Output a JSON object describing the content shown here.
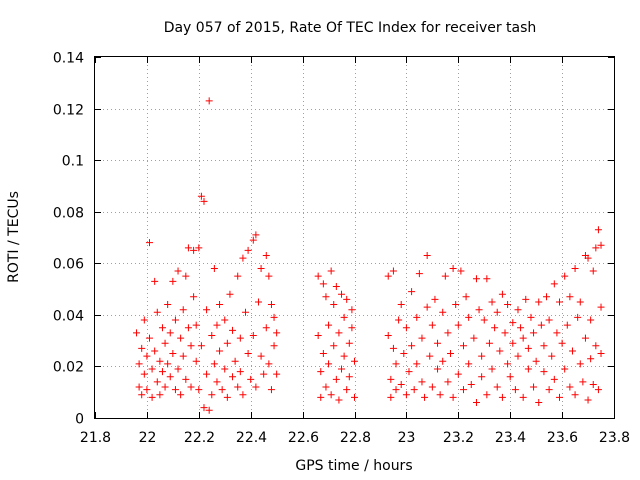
{
  "chart_data": {
    "type": "scatter",
    "title": "Day 057 of 2015, Rate Of TEC Index for receiver tash",
    "xlabel": "GPS time / hours",
    "ylabel": "ROTI / TECUs",
    "xlim": [
      21.8,
      23.8
    ],
    "ylim": [
      0,
      0.14
    ],
    "xticks": [
      "21.8",
      "22",
      "22.2",
      "22.4",
      "22.6",
      "22.8",
      "23",
      "23.2",
      "23.4",
      "23.6",
      "23.8"
    ],
    "yticks": [
      "0",
      "0.02",
      "0.04",
      "0.06",
      "0.08",
      "0.1",
      "0.12",
      "0.14"
    ],
    "grid": true,
    "marker": "+",
    "color": "#ff0000",
    "series": [
      {
        "name": "ROTI",
        "points": [
          [
            21.96,
            0.033
          ],
          [
            21.97,
            0.021
          ],
          [
            21.97,
            0.012
          ],
          [
            21.98,
            0.009
          ],
          [
            21.98,
            0.027
          ],
          [
            21.99,
            0.017
          ],
          [
            21.99,
            0.038
          ],
          [
            22.0,
            0.024
          ],
          [
            22.0,
            0.011
          ],
          [
            22.01,
            0.068
          ],
          [
            22.01,
            0.031
          ],
          [
            22.02,
            0.019
          ],
          [
            22.02,
            0.008
          ],
          [
            22.03,
            0.053
          ],
          [
            22.03,
            0.026
          ],
          [
            22.04,
            0.014
          ],
          [
            22.04,
            0.041
          ],
          [
            22.05,
            0.022
          ],
          [
            22.05,
            0.009
          ],
          [
            22.06,
            0.035
          ],
          [
            22.06,
            0.018
          ],
          [
            22.07,
            0.029
          ],
          [
            22.07,
            0.012
          ],
          [
            22.08,
            0.044
          ],
          [
            22.08,
            0.021
          ],
          [
            22.09,
            0.016
          ],
          [
            22.09,
            0.033
          ],
          [
            22.1,
            0.053
          ],
          [
            22.1,
            0.025
          ],
          [
            22.11,
            0.011
          ],
          [
            22.11,
            0.038
          ],
          [
            22.12,
            0.057
          ],
          [
            22.12,
            0.019
          ],
          [
            22.13,
            0.031
          ],
          [
            22.13,
            0.009
          ],
          [
            22.14,
            0.042
          ],
          [
            22.14,
            0.024
          ],
          [
            22.15,
            0.055
          ],
          [
            22.15,
            0.015
          ],
          [
            22.16,
            0.035
          ],
          [
            22.16,
            0.066
          ],
          [
            22.17,
            0.028
          ],
          [
            22.17,
            0.012
          ],
          [
            22.18,
            0.047
          ],
          [
            22.18,
            0.065
          ],
          [
            22.19,
            0.022
          ],
          [
            22.19,
            0.036
          ],
          [
            22.2,
            0.066
          ],
          [
            22.2,
            0.011
          ],
          [
            22.21,
            0.086
          ],
          [
            22.21,
            0.028
          ],
          [
            22.22,
            0.084
          ],
          [
            22.22,
            0.004
          ],
          [
            22.23,
            0.042
          ],
          [
            22.23,
            0.017
          ],
          [
            22.24,
            0.123
          ],
          [
            22.24,
            0.003
          ],
          [
            22.25,
            0.032
          ],
          [
            22.25,
            0.009
          ],
          [
            22.26,
            0.058
          ],
          [
            22.26,
            0.021
          ],
          [
            22.27,
            0.036
          ],
          [
            22.27,
            0.014
          ],
          [
            22.28,
            0.026
          ],
          [
            22.28,
            0.044
          ],
          [
            22.29,
            0.011
          ],
          [
            22.3,
            0.038
          ],
          [
            22.3,
            0.019
          ],
          [
            22.31,
            0.029
          ],
          [
            22.31,
            0.008
          ],
          [
            22.32,
            0.048
          ],
          [
            22.33,
            0.016
          ],
          [
            22.33,
            0.034
          ],
          [
            22.34,
            0.022
          ],
          [
            22.35,
            0.012
          ],
          [
            22.35,
            0.055
          ],
          [
            22.36,
            0.031
          ],
          [
            22.36,
            0.018
          ],
          [
            22.37,
            0.062
          ],
          [
            22.37,
            0.009
          ],
          [
            22.38,
            0.041
          ],
          [
            22.39,
            0.025
          ],
          [
            22.39,
            0.065
          ],
          [
            22.4,
            0.015
          ],
          [
            22.41,
            0.069
          ],
          [
            22.41,
            0.032
          ],
          [
            22.42,
            0.071
          ],
          [
            22.42,
            0.012
          ],
          [
            22.43,
            0.045
          ],
          [
            22.44,
            0.024
          ],
          [
            22.44,
            0.058
          ],
          [
            22.45,
            0.017
          ],
          [
            22.46,
            0.063
          ],
          [
            22.46,
            0.035
          ],
          [
            22.47,
            0.021
          ],
          [
            22.47,
            0.055
          ],
          [
            22.48,
            0.011
          ],
          [
            22.48,
            0.044
          ],
          [
            22.49,
            0.028
          ],
          [
            22.49,
            0.039
          ],
          [
            22.5,
            0.017
          ],
          [
            22.5,
            0.033
          ],
          [
            22.66,
            0.055
          ],
          [
            22.66,
            0.032
          ],
          [
            22.67,
            0.018
          ],
          [
            22.67,
            0.008
          ],
          [
            22.68,
            0.052
          ],
          [
            22.68,
            0.025
          ],
          [
            22.69,
            0.047
          ],
          [
            22.69,
            0.012
          ],
          [
            22.7,
            0.036
          ],
          [
            22.7,
            0.021
          ],
          [
            22.71,
            0.057
          ],
          [
            22.71,
            0.009
          ],
          [
            22.72,
            0.044
          ],
          [
            22.72,
            0.028
          ],
          [
            22.73,
            0.015
          ],
          [
            22.73,
            0.051
          ],
          [
            22.74,
            0.033
          ],
          [
            22.74,
            0.007
          ],
          [
            22.75,
            0.048
          ],
          [
            22.75,
            0.019
          ],
          [
            22.76,
            0.039
          ],
          [
            22.76,
            0.024
          ],
          [
            22.77,
            0.011
          ],
          [
            22.77,
            0.046
          ],
          [
            22.78,
            0.029
          ],
          [
            22.78,
            0.016
          ],
          [
            22.79,
            0.035
          ],
          [
            22.79,
            0.042
          ],
          [
            22.8,
            0.022
          ],
          [
            22.8,
            0.008
          ],
          [
            22.93,
            0.055
          ],
          [
            22.93,
            0.032
          ],
          [
            22.94,
            0.015
          ],
          [
            22.94,
            0.008
          ],
          [
            22.95,
            0.057
          ],
          [
            22.95,
            0.027
          ],
          [
            22.96,
            0.021
          ],
          [
            22.96,
            0.011
          ],
          [
            22.97,
            0.038
          ],
          [
            22.98,
            0.013
          ],
          [
            22.98,
            0.044
          ],
          [
            22.99,
            0.025
          ],
          [
            23.0,
            0.009
          ],
          [
            23.0,
            0.035
          ],
          [
            23.01,
            0.018
          ],
          [
            23.02,
            0.049
          ],
          [
            23.02,
            0.028
          ],
          [
            23.03,
            0.011
          ],
          [
            23.04,
            0.039
          ],
          [
            23.04,
            0.021
          ],
          [
            23.05,
            0.056
          ],
          [
            23.06,
            0.014
          ],
          [
            23.06,
            0.031
          ],
          [
            23.07,
            0.008
          ],
          [
            23.08,
            0.043
          ],
          [
            23.08,
            0.063
          ],
          [
            23.09,
            0.024
          ],
          [
            23.1,
            0.036
          ],
          [
            23.1,
            0.012
          ],
          [
            23.11,
            0.046
          ],
          [
            23.12,
            0.019
          ],
          [
            23.12,
            0.029
          ],
          [
            23.13,
            0.009
          ],
          [
            23.14,
            0.041
          ],
          [
            23.14,
            0.022
          ],
          [
            23.15,
            0.055
          ],
          [
            23.16,
            0.014
          ],
          [
            23.16,
            0.033
          ],
          [
            23.17,
            0.025
          ],
          [
            23.18,
            0.058
          ],
          [
            23.18,
            0.008
          ],
          [
            23.19,
            0.044
          ],
          [
            23.2,
            0.017
          ],
          [
            23.2,
            0.036
          ],
          [
            23.21,
            0.057
          ],
          [
            23.22,
            0.028
          ],
          [
            23.22,
            0.011
          ],
          [
            23.23,
            0.047
          ],
          [
            23.24,
            0.021
          ],
          [
            23.24,
            0.039
          ],
          [
            23.25,
            0.013
          ],
          [
            23.26,
            0.031
          ],
          [
            23.27,
            0.054
          ],
          [
            23.27,
            0.006
          ],
          [
            23.28,
            0.042
          ],
          [
            23.29,
            0.024
          ],
          [
            23.29,
            0.016
          ],
          [
            23.3,
            0.038
          ],
          [
            23.31,
            0.054
          ],
          [
            23.31,
            0.009
          ],
          [
            23.32,
            0.029
          ],
          [
            23.33,
            0.045
          ],
          [
            23.33,
            0.019
          ],
          [
            23.34,
            0.035
          ],
          [
            23.35,
            0.012
          ],
          [
            23.35,
            0.041
          ],
          [
            23.36,
            0.026
          ],
          [
            23.37,
            0.048
          ],
          [
            23.37,
            0.008
          ],
          [
            23.38,
            0.033
          ],
          [
            23.39,
            0.021
          ],
          [
            23.39,
            0.044
          ],
          [
            23.4,
            0.016
          ],
          [
            23.41,
            0.037
          ],
          [
            23.41,
            0.029
          ],
          [
            23.42,
            0.011
          ],
          [
            23.43,
            0.042
          ],
          [
            23.43,
            0.024
          ],
          [
            23.44,
            0.035
          ],
          [
            23.45,
            0.008
          ],
          [
            23.45,
            0.031
          ],
          [
            23.46,
            0.046
          ],
          [
            23.47,
            0.019
          ],
          [
            23.47,
            0.027
          ],
          [
            23.48,
            0.039
          ],
          [
            23.49,
            0.012
          ],
          [
            23.49,
            0.033
          ],
          [
            23.5,
            0.022
          ],
          [
            23.51,
            0.045
          ],
          [
            23.51,
            0.006
          ],
          [
            23.52,
            0.036
          ],
          [
            23.53,
            0.018
          ],
          [
            23.53,
            0.028
          ],
          [
            23.54,
            0.047
          ],
          [
            23.55,
            0.011
          ],
          [
            23.55,
            0.038
          ],
          [
            23.56,
            0.024
          ],
          [
            23.57,
            0.052
          ],
          [
            23.57,
            0.015
          ],
          [
            23.58,
            0.033
          ],
          [
            23.59,
            0.045
          ],
          [
            23.59,
            0.008
          ],
          [
            23.6,
            0.029
          ],
          [
            23.61,
            0.055
          ],
          [
            23.61,
            0.019
          ],
          [
            23.62,
            0.036
          ],
          [
            23.63,
            0.012
          ],
          [
            23.63,
            0.047
          ],
          [
            23.64,
            0.026
          ],
          [
            23.65,
            0.058
          ],
          [
            23.65,
            0.009
          ],
          [
            23.66,
            0.039
          ],
          [
            23.67,
            0.021
          ],
          [
            23.67,
            0.045
          ],
          [
            23.68,
            0.014
          ],
          [
            23.69,
            0.063
          ],
          [
            23.69,
            0.031
          ],
          [
            23.7,
            0.062
          ],
          [
            23.7,
            0.007
          ],
          [
            23.71,
            0.038
          ],
          [
            23.71,
            0.023
          ],
          [
            23.72,
            0.057
          ],
          [
            23.72,
            0.013
          ],
          [
            23.73,
            0.066
          ],
          [
            23.73,
            0.028
          ],
          [
            23.74,
            0.073
          ],
          [
            23.74,
            0.011
          ],
          [
            23.75,
            0.043
          ],
          [
            23.75,
            0.025
          ],
          [
            23.75,
            0.067
          ]
        ]
      }
    ]
  }
}
